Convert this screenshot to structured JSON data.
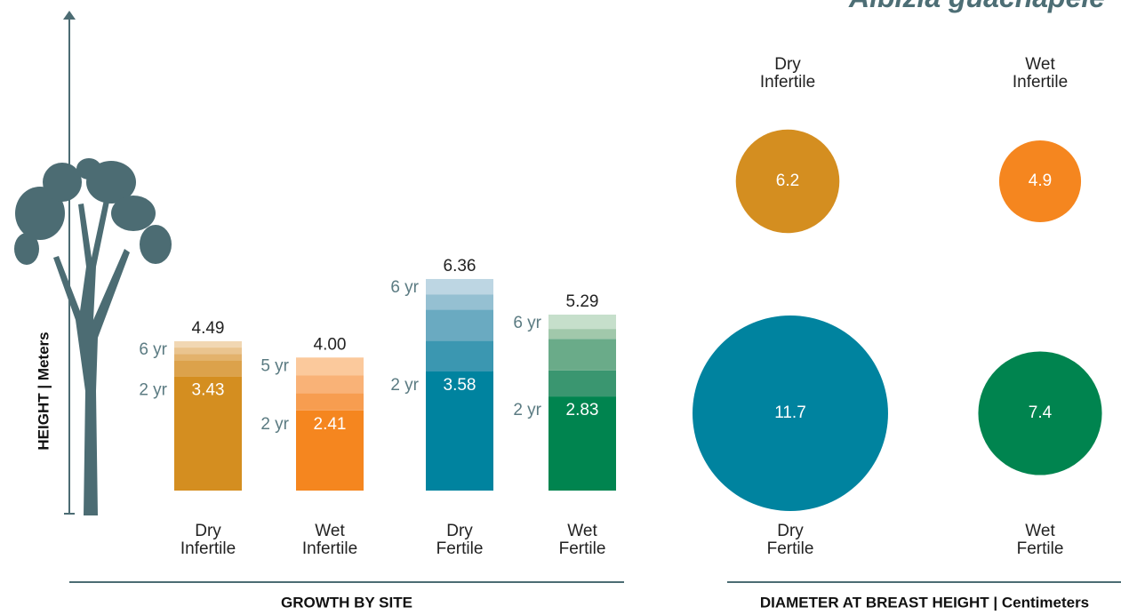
{
  "title": "Albizia guachapele",
  "chart_data": [
    {
      "type": "stacked-bar",
      "y_label": "HEIGHT  |  Meters",
      "x_label": "GROWTH BY SITE",
      "ylim": [
        0,
        14
      ],
      "categories": [
        [
          "Dry",
          "Infertile"
        ],
        [
          "Wet",
          "Infertile"
        ],
        [
          "Dry",
          "Fertile"
        ],
        [
          "Wet",
          "Fertile"
        ]
      ],
      "bars": [
        {
          "total": 4.49,
          "total_label": "4.49",
          "segments": [
            {
              "value": 3.43,
              "label": "2 yr",
              "color": "#d48e20"
            },
            {
              "value": 0.49,
              "color": "#dca24b"
            },
            {
              "value": 0.19,
              "color": "#e3b26c"
            },
            {
              "value": 0.19,
              "color": "#eac48f"
            },
            {
              "value": 0.19,
              "label": "6 yr",
              "color": "#f1d7b3"
            }
          ]
        },
        {
          "total": 4,
          "total_label": "4.00",
          "segments": [
            {
              "value": 2.41,
              "label": "2 yr",
              "color": "#f5861f"
            },
            {
              "value": 0.52,
              "color": "#f79d50"
            },
            {
              "value": 0.53,
              "color": "#f9b277"
            },
            {
              "value": 0.54,
              "label": "5 yr",
              "color": "#fbc99c"
            }
          ]
        },
        {
          "total": 6.36,
          "total_label": "6.36",
          "segments": [
            {
              "value": 3.58,
              "label": "2 yr",
              "color": "#00839f"
            },
            {
              "value": 0.92,
              "color": "#3b97b1"
            },
            {
              "value": 0.94,
              "color": "#6aaac1"
            },
            {
              "value": 0.46,
              "color": "#95c0d2"
            },
            {
              "value": 0.46,
              "label": "6 yr",
              "color": "#bdd6e3"
            }
          ]
        },
        {
          "total": 5.29,
          "total_label": "5.29",
          "segments": [
            {
              "value": 2.83,
              "label": "2 yr",
              "color": "#00844f"
            },
            {
              "value": 0.78,
              "color": "#3a9670"
            },
            {
              "value": 0.95,
              "color": "#6aab89"
            },
            {
              "value": 0.3,
              "color": "#a1c8ab"
            },
            {
              "value": 0.43,
              "label": "6 yr",
              "color": "#c6dfcb"
            }
          ]
        }
      ]
    },
    {
      "type": "bubble",
      "x_label": "DIAMETER AT BREAST HEIGHT | Centimeters",
      "categories": [
        [
          "Dry",
          "Infertile"
        ],
        [
          "Wet",
          "Infertile"
        ],
        [
          "Dry",
          "Fertile"
        ],
        [
          "Wet",
          "Fertile"
        ]
      ],
      "values": [
        6.2,
        4.9,
        11.7,
        7.4
      ],
      "colors": [
        "#d48e20",
        "#f5861f",
        "#00839f",
        "#00844f"
      ]
    }
  ]
}
